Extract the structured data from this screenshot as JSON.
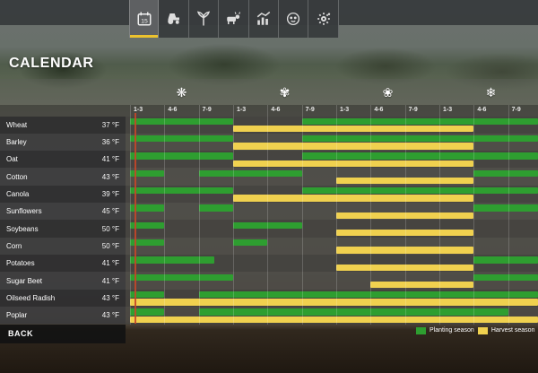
{
  "topbar": {
    "icons": [
      {
        "name": "calendar-icon",
        "selected": true
      },
      {
        "name": "vehicles-icon",
        "selected": false
      },
      {
        "name": "crops-icon",
        "selected": false
      },
      {
        "name": "animals-icon",
        "selected": false
      },
      {
        "name": "finances-icon",
        "selected": false
      },
      {
        "name": "help-icon",
        "selected": false
      },
      {
        "name": "settings-icon",
        "selected": false
      }
    ]
  },
  "title": "CALENDAR",
  "seasons": [
    {
      "name": "season-1-icon",
      "glyph": "❋"
    },
    {
      "name": "season-2-icon",
      "glyph": "✾"
    },
    {
      "name": "season-3-icon",
      "glyph": "❀"
    },
    {
      "name": "season-4-icon",
      "glyph": "❄"
    }
  ],
  "calendar": {
    "period_labels": [
      "1-3",
      "4-6",
      "7-9",
      "1-3",
      "4-6",
      "7-9",
      "1-3",
      "4-6",
      "7-9",
      "1-3",
      "4-6",
      "7-9"
    ],
    "rows": [
      {
        "crop": "Wheat",
        "temp": "37 °F",
        "green": [
          [
            1,
            4
          ],
          [
            6,
            13
          ]
        ],
        "yellow": [
          [
            4,
            11
          ]
        ]
      },
      {
        "crop": "Barley",
        "temp": "36 °F",
        "green": [
          [
            1,
            4
          ],
          [
            6,
            13
          ]
        ],
        "yellow": [
          [
            4,
            11
          ]
        ]
      },
      {
        "crop": "Oat",
        "temp": "41 °F",
        "green": [
          [
            1,
            4
          ],
          [
            6,
            13
          ]
        ],
        "yellow": [
          [
            4,
            11
          ]
        ]
      },
      {
        "crop": "Cotton",
        "temp": "43 °F",
        "green": [
          [
            1,
            2
          ],
          [
            3,
            6
          ],
          [
            11,
            13
          ]
        ],
        "yellow": [
          [
            7,
            11
          ]
        ]
      },
      {
        "crop": "Canola",
        "temp": "39 °F",
        "green": [
          [
            1,
            4
          ],
          [
            6,
            13
          ]
        ],
        "yellow": [
          [
            4,
            11
          ]
        ]
      },
      {
        "crop": "Sunflowers",
        "temp": "45 °F",
        "green": [
          [
            1,
            2
          ],
          [
            3,
            4
          ],
          [
            11,
            13
          ]
        ],
        "yellow": [
          [
            7,
            11
          ]
        ]
      },
      {
        "crop": "Soybeans",
        "temp": "50 °F",
        "green": [
          [
            1,
            2
          ],
          [
            4,
            6
          ]
        ],
        "yellow": [
          [
            7,
            11
          ]
        ]
      },
      {
        "crop": "Corn",
        "temp": "50 °F",
        "green": [
          [
            1,
            2
          ],
          [
            4,
            5
          ]
        ],
        "yellow": [
          [
            7,
            11
          ]
        ]
      },
      {
        "crop": "Potatoes",
        "temp": "41 °F",
        "green": [
          [
            1,
            3.45
          ],
          [
            11,
            13
          ]
        ],
        "yellow": [
          [
            7,
            11
          ]
        ]
      },
      {
        "crop": "Sugar Beet",
        "temp": "41 °F",
        "green": [
          [
            1,
            4
          ],
          [
            11,
            13
          ]
        ],
        "yellow": [
          [
            8,
            11
          ]
        ]
      },
      {
        "crop": "Oilseed Radish",
        "temp": "43 °F",
        "green": [
          [
            1,
            2
          ],
          [
            3,
            13
          ]
        ],
        "yellow": [
          [
            1,
            13
          ]
        ]
      },
      {
        "crop": "Poplar",
        "temp": "43 °F",
        "green": [
          [
            1,
            2
          ],
          [
            3,
            12
          ]
        ],
        "yellow": [
          [
            1,
            13
          ]
        ]
      }
    ],
    "legend": [
      {
        "label": "Planting season",
        "color": "#2e9e30"
      },
      {
        "label": "Harvest season",
        "color": "#f0d14f"
      }
    ],
    "colors": {
      "planting": "#2e9e30",
      "harvest": "#f0d14f",
      "current_day_line": "#c4462a",
      "selected_tab_underline": "#ecc22e"
    }
  },
  "back_label": "BACK"
}
